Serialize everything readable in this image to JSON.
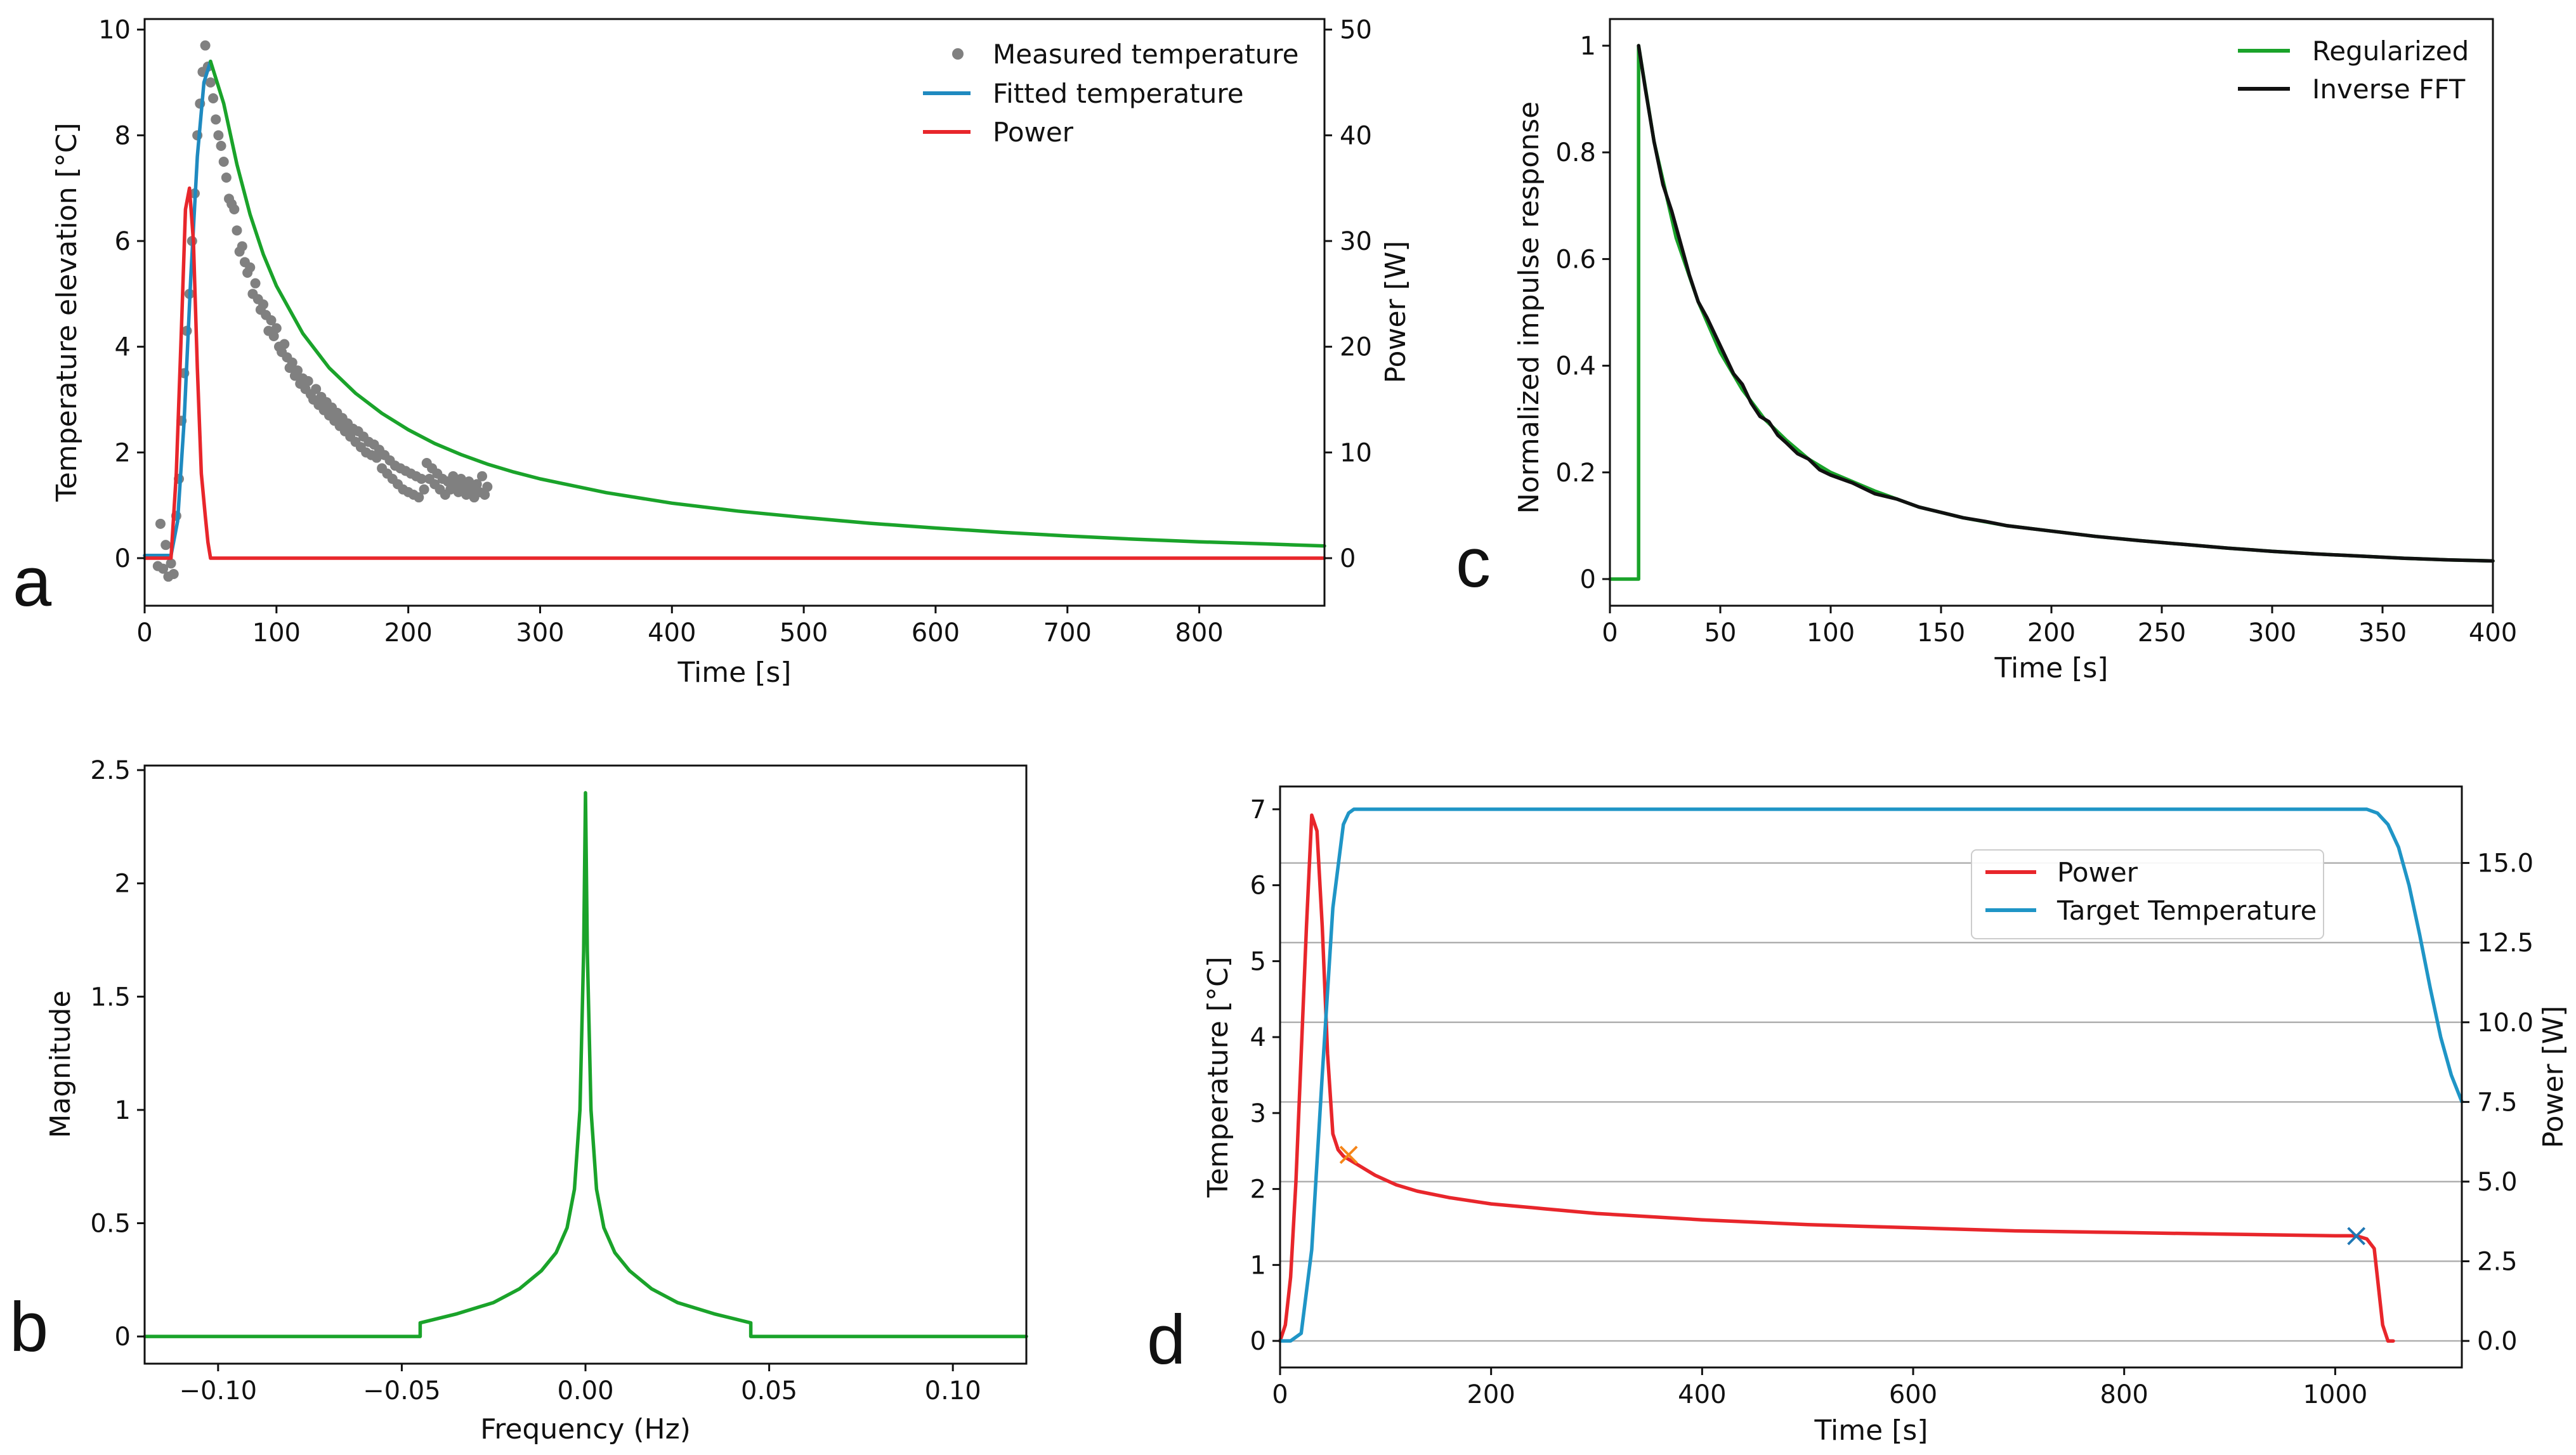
{
  "chart_data": [
    {
      "panel": "a",
      "type": "line",
      "xlabel": "Time [s]",
      "ylabel": "Temperature elevation [°C]",
      "ylabel_right": "Power [W]",
      "xlim": [
        0,
        895
      ],
      "ylim": [
        -0.9,
        10.2
      ],
      "ylim_right": [
        -4.5,
        51
      ],
      "xticks": [
        0,
        100,
        200,
        300,
        400,
        500,
        600,
        700,
        800
      ],
      "yticks": [
        0,
        2,
        4,
        6,
        8,
        10
      ],
      "yticks_right": [
        0,
        10,
        20,
        30,
        40,
        50
      ],
      "legend_position": "top-right",
      "series": [
        {
          "name": "Measured temperature",
          "kind": "scatter",
          "color": "#808080",
          "axis": "left",
          "x": [
            10,
            12,
            14,
            16,
            18,
            20,
            22,
            24,
            26,
            28,
            30,
            32,
            34,
            36,
            38,
            40,
            42,
            44,
            46,
            48,
            50,
            52,
            54,
            56,
            58,
            60,
            62,
            64,
            66,
            68,
            70,
            72,
            74,
            76,
            78,
            80,
            82,
            84,
            86,
            88,
            90,
            92,
            94,
            96,
            98,
            100,
            102,
            104,
            106,
            108,
            110,
            112,
            114,
            116,
            118,
            120,
            122,
            124,
            126,
            128,
            130,
            132,
            134,
            136,
            138,
            140,
            142,
            144,
            146,
            148,
            150,
            152,
            154,
            156,
            158,
            160,
            162,
            164,
            166,
            168,
            170,
            172,
            174,
            176,
            178,
            180,
            182,
            184,
            186,
            188,
            190,
            192,
            194,
            196,
            198,
            200,
            202,
            204,
            206,
            208,
            210,
            212,
            214,
            216,
            218,
            220,
            222,
            224,
            226,
            228,
            230,
            232,
            234,
            236,
            238,
            240,
            242,
            244,
            246,
            248,
            250,
            252,
            254,
            256,
            258,
            260
          ],
          "y": [
            -0.15,
            0.65,
            -0.2,
            0.25,
            -0.35,
            -0.1,
            -0.3,
            0.8,
            1.5,
            2.6,
            3.5,
            4.3,
            5.0,
            6.0,
            6.9,
            8.0,
            8.6,
            9.2,
            9.7,
            9.3,
            9.0,
            8.7,
            8.3,
            8.0,
            7.8,
            7.5,
            7.2,
            6.8,
            6.7,
            6.6,
            6.2,
            5.8,
            5.9,
            5.6,
            5.4,
            5.5,
            5.0,
            5.2,
            4.9,
            4.7,
            4.8,
            4.6,
            4.3,
            4.5,
            4.2,
            4.35,
            4.0,
            3.9,
            4.05,
            3.8,
            3.6,
            3.7,
            3.45,
            3.55,
            3.3,
            3.4,
            3.2,
            3.35,
            3.1,
            3.0,
            3.2,
            2.9,
            3.05,
            2.8,
            2.95,
            2.7,
            2.85,
            2.6,
            2.75,
            2.5,
            2.65,
            2.4,
            2.55,
            2.3,
            2.45,
            2.2,
            2.4,
            2.1,
            2.3,
            2.0,
            2.2,
            1.95,
            2.15,
            1.9,
            2.05,
            1.7,
            1.95,
            1.6,
            1.85,
            1.5,
            1.75,
            1.4,
            1.7,
            1.3,
            1.65,
            1.25,
            1.6,
            1.2,
            1.55,
            1.15,
            1.5,
            1.3,
            1.8,
            1.5,
            1.7,
            1.4,
            1.6,
            1.3,
            1.5,
            1.2,
            1.45,
            1.3,
            1.55,
            1.4,
            1.25,
            1.5,
            1.35,
            1.2,
            1.45,
            1.3,
            1.15,
            1.4,
            1.25,
            1.55,
            1.2,
            1.35
          ]
        },
        {
          "name": "Fitted temperature",
          "kind": "line",
          "color": "#1f8ac0",
          "axis": "left",
          "x": [
            0,
            20,
            25,
            30,
            35,
            40,
            45,
            50
          ],
          "y": [
            0.05,
            0.05,
            0.7,
            2.6,
            5.3,
            7.6,
            9.0,
            9.4
          ]
        },
        {
          "name": "",
          "kind": "line",
          "color": "#1aa32a",
          "axis": "left",
          "x": [
            50,
            60,
            70,
            80,
            90,
            100,
            120,
            140,
            160,
            180,
            200,
            220,
            240,
            260,
            280,
            300,
            350,
            400,
            450,
            500,
            550,
            600,
            650,
            700,
            750,
            800,
            850,
            895
          ],
          "y": [
            9.4,
            8.6,
            7.45,
            6.5,
            5.75,
            5.15,
            4.25,
            3.6,
            3.12,
            2.74,
            2.43,
            2.17,
            1.96,
            1.78,
            1.63,
            1.5,
            1.24,
            1.04,
            0.89,
            0.77,
            0.66,
            0.57,
            0.49,
            0.42,
            0.36,
            0.31,
            0.27,
            0.23
          ]
        },
        {
          "name": "Power",
          "kind": "line",
          "color": "#e8262b",
          "axis": "right",
          "x": [
            0,
            20,
            24,
            28,
            31,
            34,
            37,
            40,
            43,
            46,
            48,
            50,
            52,
            895
          ],
          "y": [
            0,
            0,
            8,
            22,
            33,
            35,
            30,
            18,
            8,
            4,
            1.5,
            0,
            0,
            0
          ]
        }
      ]
    },
    {
      "panel": "b",
      "type": "line",
      "xlabel": "Frequency (Hz)",
      "ylabel": "Magnitude",
      "xlim": [
        -0.12,
        0.12
      ],
      "ylim": [
        -0.12,
        2.52
      ],
      "xticks": [
        -0.1,
        -0.05,
        0.0,
        0.05,
        0.1
      ],
      "xticklabels": [
        "−0.10",
        "−0.05",
        "0.00",
        "0.05",
        "0.10"
      ],
      "yticks": [
        0.0,
        0.5,
        1.0,
        1.5,
        2.0,
        2.5
      ],
      "series": [
        {
          "name": "",
          "color": "#1aa32a",
          "x": [
            -0.12,
            -0.045,
            -0.045,
            -0.035,
            -0.025,
            -0.018,
            -0.012,
            -0.008,
            -0.005,
            -0.003,
            -0.0015,
            -0.0005,
            0.0,
            0.0005,
            0.0015,
            0.003,
            0.005,
            0.008,
            0.012,
            0.018,
            0.025,
            0.035,
            0.045,
            0.045,
            0.12
          ],
          "y": [
            0.0,
            0.0,
            0.06,
            0.1,
            0.15,
            0.21,
            0.29,
            0.37,
            0.48,
            0.65,
            1.0,
            1.7,
            2.4,
            1.7,
            1.0,
            0.65,
            0.48,
            0.37,
            0.29,
            0.21,
            0.15,
            0.1,
            0.06,
            0.0,
            0.0
          ]
        }
      ]
    },
    {
      "panel": "c",
      "type": "line",
      "xlabel": "Time [s]",
      "ylabel": "Normalized impulse response",
      "xlim": [
        0,
        400
      ],
      "ylim": [
        -0.05,
        1.05
      ],
      "xticks": [
        0,
        50,
        100,
        150,
        200,
        250,
        300,
        350,
        400
      ],
      "yticks": [
        0.0,
        0.2,
        0.4,
        0.6,
        0.8,
        1.0
      ],
      "legend_position": "top-right",
      "series": [
        {
          "name": "Regularized",
          "color": "#1aa32a",
          "x": [
            0,
            13,
            13,
            20,
            30,
            40,
            50,
            60,
            70,
            80,
            90,
            100,
            120,
            140,
            160,
            180,
            200,
            220,
            240,
            260,
            280,
            300,
            320,
            340,
            360,
            380,
            400
          ],
          "y": [
            0.0,
            0.0,
            1.0,
            0.82,
            0.64,
            0.52,
            0.425,
            0.355,
            0.3,
            0.26,
            0.225,
            0.2,
            0.165,
            0.135,
            0.115,
            0.1,
            0.09,
            0.08,
            0.072,
            0.065,
            0.058,
            0.052,
            0.047,
            0.043,
            0.039,
            0.036,
            0.034
          ]
        },
        {
          "name": "Inverse FFT",
          "color": "#111111",
          "x": [
            13,
            16,
            20,
            24,
            28,
            32,
            36,
            40,
            44,
            48,
            52,
            56,
            60,
            64,
            68,
            72,
            76,
            80,
            85,
            90,
            95,
            100,
            110,
            120,
            130,
            140,
            150,
            160,
            170,
            180,
            190,
            200,
            220,
            240,
            260,
            280,
            300,
            320,
            340,
            360,
            380,
            400
          ],
          "y": [
            1.0,
            0.92,
            0.82,
            0.74,
            0.69,
            0.63,
            0.57,
            0.52,
            0.49,
            0.455,
            0.42,
            0.385,
            0.365,
            0.33,
            0.305,
            0.295,
            0.27,
            0.255,
            0.235,
            0.225,
            0.205,
            0.195,
            0.18,
            0.16,
            0.15,
            0.135,
            0.125,
            0.115,
            0.108,
            0.1,
            0.095,
            0.09,
            0.08,
            0.072,
            0.065,
            0.058,
            0.052,
            0.047,
            0.043,
            0.039,
            0.036,
            0.034
          ]
        }
      ]
    },
    {
      "panel": "d",
      "type": "line",
      "xlabel": "Time [s]",
      "ylabel": "Temperature [°C]",
      "ylabel_right": "Power [W]",
      "xlim": [
        0,
        1120
      ],
      "ylim": [
        -0.35,
        7.3
      ],
      "ylim_right": [
        -0.833,
        17.4
      ],
      "xticks": [
        0,
        200,
        400,
        600,
        800,
        1000
      ],
      "yticks": [
        0,
        1,
        2,
        3,
        4,
        5,
        6,
        7
      ],
      "yticks_right": [
        0.0,
        2.5,
        5.0,
        7.5,
        10.0,
        12.5,
        15.0
      ],
      "yticklabels_right": [
        "0.0",
        "2.5",
        "5.0",
        "7.5",
        "10.0",
        "12.5",
        "15.0"
      ],
      "grid": "horizontal (right axis)",
      "legend_position": "upper-center-right",
      "series": [
        {
          "name": "Power",
          "color": "#e8262b",
          "axis": "right",
          "x": [
            0,
            5,
            10,
            15,
            20,
            25,
            30,
            35,
            40,
            45,
            50,
            55,
            60,
            65,
            75,
            90,
            110,
            130,
            160,
            200,
            250,
            300,
            400,
            500,
            600,
            700,
            800,
            900,
            1000,
            1020,
            1030,
            1037,
            1040,
            1045,
            1050,
            1055
          ],
          "y": [
            0,
            0.5,
            2,
            5,
            9,
            13,
            16.5,
            16,
            13,
            9,
            6.5,
            6.0,
            5.8,
            5.7,
            5.5,
            5.2,
            4.9,
            4.7,
            4.5,
            4.3,
            4.15,
            4.0,
            3.8,
            3.65,
            3.55,
            3.45,
            3.4,
            3.35,
            3.3,
            3.3,
            3.2,
            2.9,
            2.0,
            0.5,
            0.0,
            0.0
          ]
        },
        {
          "name": "Target Temperature",
          "color": "#1f95c6",
          "axis": "left",
          "x": [
            0,
            10,
            20,
            30,
            40,
            50,
            60,
            65,
            70,
            75,
            80,
            1030,
            1040,
            1050,
            1060,
            1070,
            1080,
            1090,
            1100,
            1110,
            1120
          ],
          "y": [
            0,
            0,
            0.1,
            1.2,
            3.5,
            5.7,
            6.8,
            6.95,
            7.0,
            7.0,
            7.0,
            7.0,
            6.95,
            6.8,
            6.5,
            6.0,
            5.35,
            4.65,
            4.0,
            3.5,
            3.15
          ]
        },
        {
          "name": "",
          "kind": "marker",
          "marker": "x",
          "color": "#f58518",
          "axis": "left",
          "x": [
            65
          ],
          "y": [
            2.45
          ]
        },
        {
          "name": "",
          "kind": "marker",
          "marker": "x",
          "color": "#1f77b4",
          "axis": "left",
          "x": [
            1020
          ],
          "y": [
            1.38
          ]
        }
      ]
    }
  ]
}
